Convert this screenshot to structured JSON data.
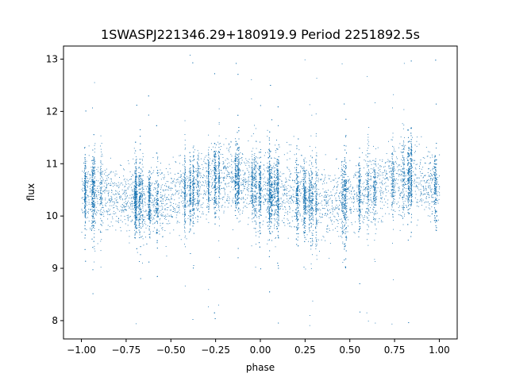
{
  "chart_data": {
    "type": "scatter",
    "title": "1SWASPJ221346.29+180919.9 Period 2251892.5s",
    "xlabel": "phase",
    "ylabel": "flux",
    "xlim": [
      -1.1,
      1.1
    ],
    "ylim": [
      7.65,
      13.25
    ],
    "xticks": [
      -1.0,
      -0.75,
      -0.5,
      -0.25,
      0.0,
      0.25,
      0.5,
      0.75,
      1.0
    ],
    "xtick_labels": [
      "−1.00",
      "−0.75",
      "−0.50",
      "−0.25",
      "0.00",
      "0.25",
      "0.50",
      "0.75",
      "1.00"
    ],
    "yticks": [
      8,
      9,
      10,
      11,
      12,
      13
    ],
    "ytick_labels": [
      "8",
      "9",
      "10",
      "11",
      "12",
      "13"
    ],
    "grid": false,
    "legend": "none",
    "marker_color": "#1f77b4",
    "series": [
      {
        "x_range": [
          -1.0,
          1.0
        ],
        "folded_period_phase": 1.0,
        "typical_flux_min": 9.9,
        "typical_flux_max": 10.9,
        "median_flux_profile": [
          {
            "phase": -1.0,
            "flux": 10.5
          },
          {
            "phase": -0.75,
            "flux": 10.35
          },
          {
            "phase": -0.6,
            "flux": 10.25
          },
          {
            "phase": -0.45,
            "flux": 10.4
          },
          {
            "phase": -0.3,
            "flux": 10.6
          },
          {
            "phase": -0.2,
            "flux": 10.75
          },
          {
            "phase": -0.1,
            "flux": 10.65
          },
          {
            "phase": 0.0,
            "flux": 10.5
          },
          {
            "phase": 0.25,
            "flux": 10.35
          },
          {
            "phase": 0.4,
            "flux": 10.25
          },
          {
            "phase": 0.55,
            "flux": 10.4
          },
          {
            "phase": 0.7,
            "flux": 10.6
          },
          {
            "phase": 0.8,
            "flux": 10.75
          },
          {
            "phase": 0.9,
            "flux": 10.65
          },
          {
            "phase": 1.0,
            "flux": 10.5
          }
        ],
        "outlier_flux_min": 7.9,
        "outlier_flux_max": 13.1
      }
    ]
  }
}
